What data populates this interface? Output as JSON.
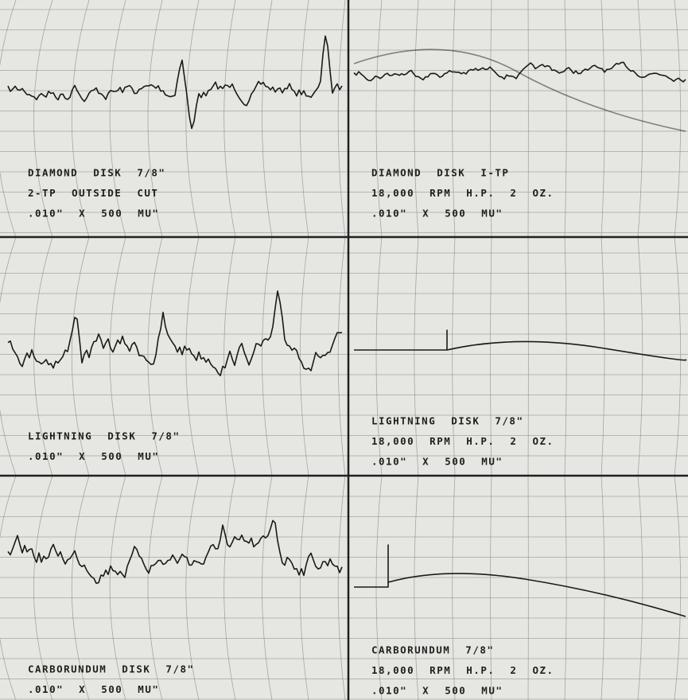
{
  "panels": [
    {
      "lines": [
        "DIAMOND DISK 7/8\"",
        "2-TP OUTSIDE CUT",
        ".010\" X 500 MU\""
      ]
    },
    {
      "lines": [
        "DIAMOND DISK I-TP",
        "18,000 RPM H.P. 2 OZ.",
        ".010\" X 500 MU\""
      ]
    },
    {
      "lines": [
        "LIGHTNING DISK 7/8\"",
        ".010\" X 500 MU\""
      ]
    },
    {
      "lines": [
        "LIGHTNING DISK 7/8\"",
        "18,000 RPM H.P. 2 OZ.",
        ".010\" X 500 MU\""
      ]
    },
    {
      "lines": [
        "CARBORUNDUM DISK 7/8\"",
        ".010\" X 500 MU\""
      ]
    },
    {
      "lines": [
        "CARBORUNDUM 7/8\"",
        "18,000 RPM H.P. 2 OZ.",
        ".010\" X 500 MU\""
      ]
    }
  ]
}
